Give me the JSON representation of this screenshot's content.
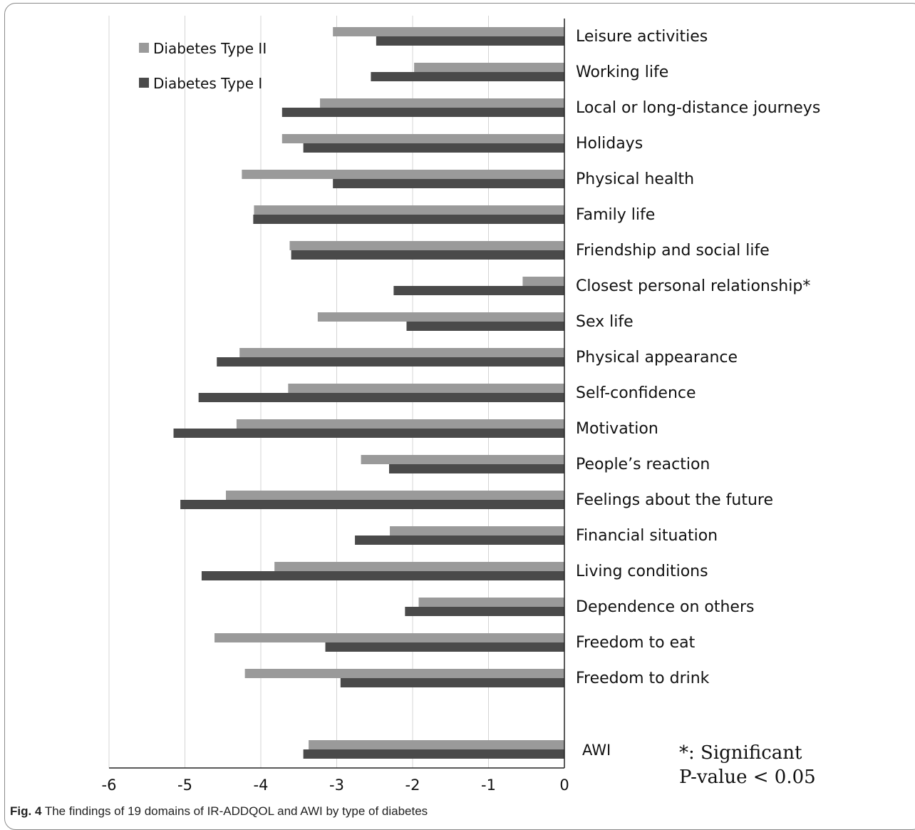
{
  "chart_data": {
    "type": "bar",
    "orientation": "horizontal",
    "categories": [
      "Leisure activities",
      "Working life",
      "Local or long-distance journeys",
      "Holidays",
      "Physical health",
      "Family life",
      "Friendship and social life",
      "Closest personal relationship*",
      "Sex life",
      "Physical appearance",
      "Self-confidence",
      "Motivation",
      "People’s reaction",
      "Feelings about the future",
      "Financial situation",
      "Living conditions",
      "Dependence on others",
      "Freedom to eat",
      "Freedom to drink",
      "AWI"
    ],
    "series": [
      {
        "name": "Diabetes Type II",
        "color": "#9a9a9a",
        "values": [
          -3.05,
          -1.98,
          -3.22,
          -3.72,
          -4.25,
          -4.09,
          -3.62,
          -0.55,
          -3.25,
          -4.28,
          -3.64,
          -4.32,
          -2.68,
          -4.46,
          -2.3,
          -3.82,
          -1.92,
          -4.61,
          -4.21,
          -3.37
        ]
      },
      {
        "name": "Diabetes Type I",
        "color": "#4a4a4a",
        "values": [
          -2.48,
          -2.55,
          -3.72,
          -3.44,
          -3.05,
          -4.1,
          -3.6,
          -2.25,
          -2.08,
          -4.58,
          -4.82,
          -5.15,
          -2.31,
          -5.06,
          -2.76,
          -4.78,
          -2.1,
          -3.15,
          -2.95,
          -3.44
        ]
      }
    ],
    "xlim": [
      -6,
      0
    ],
    "x_ticks": [
      "-6",
      "-5",
      "-4",
      "-3",
      "-2",
      "-1",
      "0"
    ],
    "grid": "vertical",
    "legend_position": "top-left",
    "note_lines": [
      "*: Significant",
      "P-value < 0.05"
    ]
  },
  "caption": {
    "fig_label": "Fig. 4",
    "text": "The findings of 19 domains of IR-ADDQOL and AWI by type of diabetes"
  }
}
